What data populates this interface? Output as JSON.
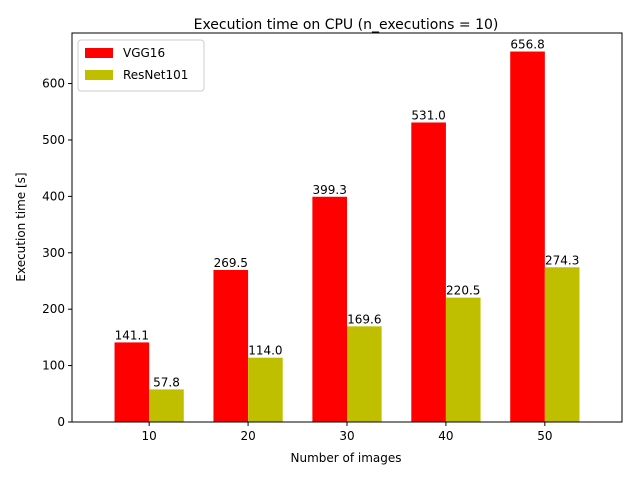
{
  "chart_data": {
    "type": "bar",
    "title": "Execution time on CPU (n_executions = 10)",
    "xlabel": "Number of images",
    "ylabel": "Execution time [s]",
    "categories": [
      "10",
      "20",
      "30",
      "40",
      "50"
    ],
    "series": [
      {
        "name": "VGG16",
        "color": "#ff0000",
        "values": [
          141.1,
          269.5,
          399.3,
          531.0,
          656.8
        ],
        "labels": [
          "141.1",
          "269.5",
          "399.3",
          "531.0",
          "656.8"
        ]
      },
      {
        "name": "ResNet101",
        "color": "#bfbf00",
        "values": [
          57.8,
          114.0,
          169.6,
          220.5,
          274.3
        ],
        "labels": [
          "57.8",
          "114.0",
          "169.6",
          "220.5",
          "274.3"
        ]
      }
    ],
    "ylim": [
      0,
      689.64
    ],
    "yticks": [
      0,
      100,
      200,
      300,
      400,
      500,
      600
    ],
    "ytick_labels": [
      "0",
      "100",
      "200",
      "300",
      "400",
      "500",
      "600"
    ],
    "grid": false,
    "legend_position": "top-left"
  }
}
